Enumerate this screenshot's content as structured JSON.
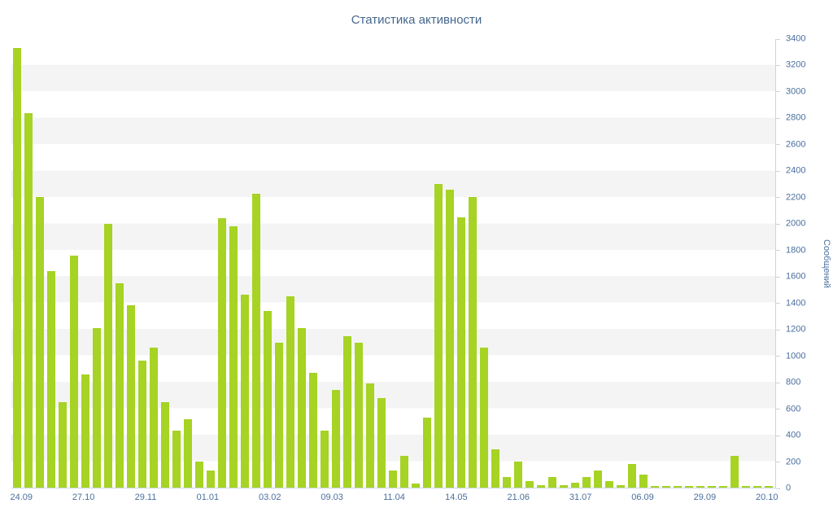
{
  "chart_data": {
    "type": "bar",
    "title": "Статистика активности",
    "ylabel": "Сообщений",
    "xlabel": "",
    "ylim": [
      0,
      3400
    ],
    "ytick_step": 200,
    "grid": "horizontal-bands",
    "legend": "none",
    "y_axis_position": "right",
    "bar_color": "#a6d324",
    "label_color": "#4a6f9e",
    "title_color": "#44678d",
    "axis_color": "#c9d4e0",
    "band_color": "#f4f4f4",
    "x_labels": [
      "24.09",
      "27.10",
      "29.11",
      "01.01",
      "03.02",
      "09.03",
      "11.04",
      "14.05",
      "21.06",
      "31.07",
      "06.09",
      "29.09",
      "20.10"
    ],
    "values": [
      3330,
      2840,
      2200,
      1640,
      650,
      1760,
      860,
      1210,
      2000,
      1550,
      1380,
      960,
      1060,
      650,
      430,
      520,
      200,
      130,
      2040,
      1980,
      1460,
      2230,
      1340,
      1100,
      1450,
      1210,
      870,
      430,
      740,
      1150,
      1100,
      790,
      680,
      130,
      240,
      30,
      530,
      2300,
      2260,
      2050,
      2200,
      1060,
      290,
      80,
      200,
      50,
      20,
      80,
      20,
      40,
      80,
      130,
      50,
      20,
      180,
      100,
      10,
      10,
      15,
      10,
      10,
      10,
      10,
      240,
      10,
      5,
      15
    ]
  }
}
